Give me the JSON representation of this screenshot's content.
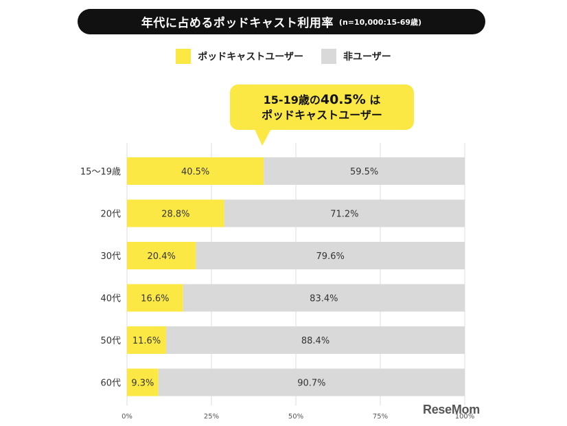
{
  "title": {
    "main": "年代に占めるポッドキャスト利用率",
    "sub": "(n=10,000:15-69歳)"
  },
  "legend": {
    "users": "ポッドキャストユーザー",
    "non_users": "非ユーザー"
  },
  "callout": {
    "line1_prefix": "15-19歳の",
    "line1_value": "40.5%",
    "line1_suffix": " は",
    "line2": "ポッドキャストユーザー"
  },
  "colors": {
    "users": "#fbe844",
    "non_users": "#d9d9d9",
    "title_bg": "#111111"
  },
  "watermark": "ReseMom",
  "chart_data": {
    "type": "bar",
    "orientation": "horizontal",
    "stacked": true,
    "categories": [
      "15〜19歳",
      "20代",
      "30代",
      "40代",
      "50代",
      "60代"
    ],
    "series": [
      {
        "name": "ポッドキャストユーザー",
        "values": [
          40.5,
          28.8,
          20.4,
          16.6,
          11.6,
          9.3
        ],
        "labels": [
          "40.5%",
          "28.8%",
          "20.4%",
          "16.6%",
          "11.6%",
          "9.3%"
        ]
      },
      {
        "name": "非ユーザー",
        "values": [
          59.5,
          71.2,
          79.6,
          83.4,
          88.4,
          90.7
        ],
        "labels": [
          "59.5%",
          "71.2%",
          "79.6%",
          "83.4%",
          "88.4%",
          "90.7%"
        ]
      }
    ],
    "xlim": [
      0,
      100
    ],
    "x_ticks": [
      "0%",
      "25%",
      "50%",
      "75%",
      "100%"
    ],
    "grid": true
  }
}
